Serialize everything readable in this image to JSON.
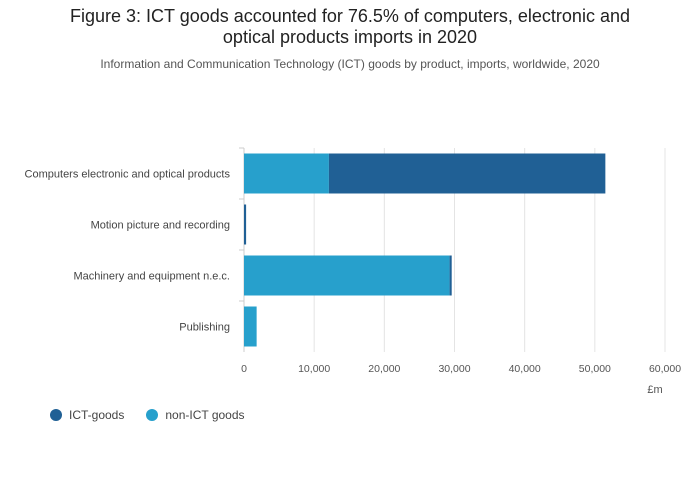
{
  "chart_data": {
    "type": "bar",
    "orientation": "horizontal",
    "stacked": true,
    "title": [
      "Figure 3: ICT goods accounted for 76.5% of computers, electronic and",
      "optical products imports in 2020"
    ],
    "subtitle": "Information and Communication Technology (ICT) goods by product, imports, worldwide, 2020",
    "categories": [
      "Computers electronic and optical products",
      "Motion picture and recording",
      "Machinery and equipment n.e.c.",
      "Publishing"
    ],
    "series": [
      {
        "name": "non-ICT goods",
        "color": "#27a0cc",
        "values": [
          12100,
          0,
          29300,
          1800
        ]
      },
      {
        "name": "ICT-goods",
        "color": "#206095",
        "values": [
          39400,
          300,
          300,
          0
        ]
      }
    ],
    "xticks": [
      "0",
      "10,000",
      "20,000",
      "30,000",
      "40,000",
      "50,000",
      "60,000"
    ],
    "xlim": [
      0,
      60000
    ],
    "xlabel": "£m",
    "ylabel": "",
    "grid": true,
    "legend": [
      {
        "name": "ICT-goods",
        "color": "#206095"
      },
      {
        "name": "non-ICT goods",
        "color": "#27a0cc"
      }
    ],
    "legend_position": "bottom-left"
  }
}
